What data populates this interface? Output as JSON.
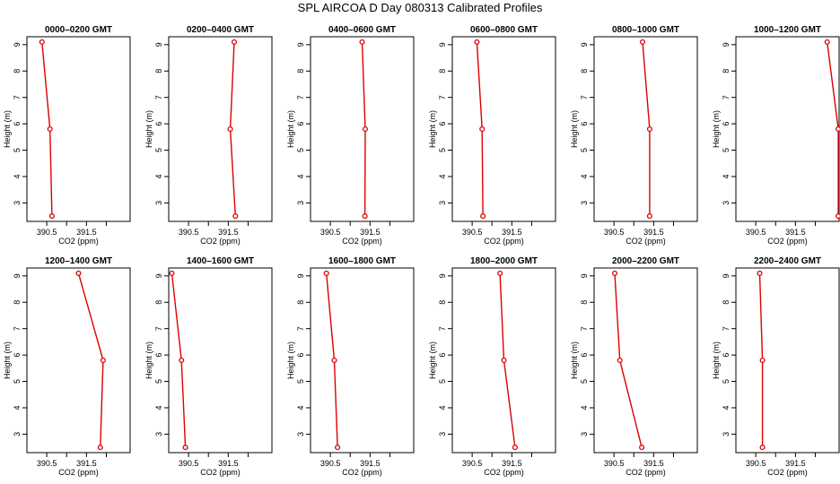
{
  "page": {
    "title": "SPL AIRCOA D  Day 080313  Calibrated Profiles"
  },
  "style": {
    "line_color": "#dd0000",
    "point_color": "#dd0000",
    "axis_color": "#000000"
  },
  "chart_data": [
    {
      "type": "line",
      "title": "0000–0200 GMT",
      "xlabel": "CO2 (ppm)",
      "ylabel": "Height (m)",
      "xlim": [
        390.0,
        392.6
      ],
      "ylim": [
        2.3,
        9.3
      ],
      "xticks": [
        "390.5",
        "391.5"
      ],
      "xtick_values": [
        390.5,
        391.5
      ],
      "yticks": [
        "3",
        "4",
        "5",
        "6",
        "7",
        "8",
        "9"
      ],
      "series": [
        {
          "x": [
            390.38,
            390.58,
            390.63
          ],
          "y": [
            9.1,
            5.8,
            2.5
          ]
        }
      ]
    },
    {
      "type": "line",
      "title": "0200–0400 GMT",
      "xlabel": "CO2 (ppm)",
      "ylabel": "Height (m)",
      "xlim": [
        390.0,
        392.6
      ],
      "ylim": [
        2.3,
        9.3
      ],
      "xticks": [
        "390.5",
        "391.5"
      ],
      "xtick_values": [
        390.5,
        391.5
      ],
      "yticks": [
        "3",
        "4",
        "5",
        "6",
        "7",
        "8",
        "9"
      ],
      "series": [
        {
          "x": [
            391.65,
            391.55,
            391.68
          ],
          "y": [
            9.1,
            5.8,
            2.5
          ]
        }
      ]
    },
    {
      "type": "line",
      "title": "0400–0600 GMT",
      "xlabel": "CO2 (ppm)",
      "ylabel": "Height (m)",
      "xlim": [
        390.0,
        392.6
      ],
      "ylim": [
        2.3,
        9.3
      ],
      "xticks": [
        "390.5",
        "391.5"
      ],
      "xtick_values": [
        390.5,
        391.5
      ],
      "yticks": [
        "3",
        "4",
        "5",
        "6",
        "7",
        "8",
        "9"
      ],
      "series": [
        {
          "x": [
            391.3,
            391.38,
            391.37
          ],
          "y": [
            9.1,
            5.8,
            2.5
          ]
        }
      ]
    },
    {
      "type": "line",
      "title": "0600–0800 GMT",
      "xlabel": "CO2 (ppm)",
      "ylabel": "Height (m)",
      "xlim": [
        390.0,
        392.6
      ],
      "ylim": [
        2.3,
        9.3
      ],
      "xticks": [
        "390.5",
        "391.5"
      ],
      "xtick_values": [
        390.5,
        391.5
      ],
      "yticks": [
        "3",
        "4",
        "5",
        "6",
        "7",
        "8",
        "9"
      ],
      "series": [
        {
          "x": [
            390.62,
            390.75,
            390.77
          ],
          "y": [
            9.1,
            5.8,
            2.5
          ]
        }
      ]
    },
    {
      "type": "line",
      "title": "0800–1000 GMT",
      "xlabel": "CO2 (ppm)",
      "ylabel": "Height (m)",
      "xlim": [
        390.0,
        392.6
      ],
      "ylim": [
        2.3,
        9.3
      ],
      "xticks": [
        "390.5",
        "391.5"
      ],
      "xtick_values": [
        390.5,
        391.5
      ],
      "yticks": [
        "3",
        "4",
        "5",
        "6",
        "7",
        "8",
        "9"
      ],
      "series": [
        {
          "x": [
            391.22,
            391.4,
            391.4
          ],
          "y": [
            9.1,
            5.8,
            2.5
          ]
        }
      ]
    },
    {
      "type": "line",
      "title": "1000–1200 GMT",
      "xlabel": "CO2 (ppm)",
      "ylabel": "Height (m)",
      "xlim": [
        390.0,
        392.6
      ],
      "ylim": [
        2.3,
        9.3
      ],
      "xticks": [
        "390.5",
        "391.5"
      ],
      "xtick_values": [
        390.5,
        391.5
      ],
      "yticks": [
        "3",
        "4",
        "5",
        "6",
        "7",
        "8",
        "9"
      ],
      "series": [
        {
          "x": [
            392.3,
            392.58,
            392.58
          ],
          "y": [
            9.1,
            5.8,
            2.5
          ]
        }
      ]
    },
    {
      "type": "line",
      "title": "1200–1400 GMT",
      "xlabel": "CO2 (ppm)",
      "ylabel": "Height (m)",
      "xlim": [
        390.0,
        392.6
      ],
      "ylim": [
        2.3,
        9.3
      ],
      "xticks": [
        "390.5",
        "391.5"
      ],
      "xtick_values": [
        390.5,
        391.5
      ],
      "yticks": [
        "3",
        "4",
        "5",
        "6",
        "7",
        "8",
        "9"
      ],
      "series": [
        {
          "x": [
            391.3,
            391.92,
            391.85
          ],
          "y": [
            9.1,
            5.8,
            2.5
          ]
        }
      ]
    },
    {
      "type": "line",
      "title": "1400–1600 GMT",
      "xlabel": "CO2 (ppm)",
      "ylabel": "Height (m)",
      "xlim": [
        390.0,
        392.6
      ],
      "ylim": [
        2.3,
        9.3
      ],
      "xticks": [
        "390.5",
        "391.5"
      ],
      "xtick_values": [
        390.5,
        391.5
      ],
      "yticks": [
        "3",
        "4",
        "5",
        "6",
        "7",
        "8",
        "9"
      ],
      "series": [
        {
          "x": [
            390.08,
            390.32,
            390.42
          ],
          "y": [
            9.1,
            5.8,
            2.5
          ]
        }
      ]
    },
    {
      "type": "line",
      "title": "1600–1800 GMT",
      "xlabel": "CO2 (ppm)",
      "ylabel": "Height (m)",
      "xlim": [
        390.0,
        392.6
      ],
      "ylim": [
        2.3,
        9.3
      ],
      "xticks": [
        "390.5",
        "391.5"
      ],
      "xtick_values": [
        390.5,
        391.5
      ],
      "yticks": [
        "3",
        "4",
        "5",
        "6",
        "7",
        "8",
        "9"
      ],
      "series": [
        {
          "x": [
            390.4,
            390.6,
            390.68
          ],
          "y": [
            9.1,
            5.8,
            2.5
          ]
        }
      ]
    },
    {
      "type": "line",
      "title": "1800–2000 GMT",
      "xlabel": "CO2 (ppm)",
      "ylabel": "Height (m)",
      "xlim": [
        390.0,
        392.6
      ],
      "ylim": [
        2.3,
        9.3
      ],
      "xticks": [
        "390.5",
        "391.5"
      ],
      "xtick_values": [
        390.5,
        391.5
      ],
      "yticks": [
        "3",
        "4",
        "5",
        "6",
        "7",
        "8",
        "9"
      ],
      "series": [
        {
          "x": [
            391.2,
            391.3,
            391.58
          ],
          "y": [
            9.1,
            5.8,
            2.5
          ]
        }
      ]
    },
    {
      "type": "line",
      "title": "2000–2200 GMT",
      "xlabel": "CO2 (ppm)",
      "ylabel": "Height (m)",
      "xlim": [
        390.0,
        392.6
      ],
      "ylim": [
        2.3,
        9.3
      ],
      "xticks": [
        "390.5",
        "391.5"
      ],
      "xtick_values": [
        390.5,
        391.5
      ],
      "yticks": [
        "3",
        "4",
        "5",
        "6",
        "7",
        "8",
        "9"
      ],
      "series": [
        {
          "x": [
            390.52,
            390.65,
            391.2
          ],
          "y": [
            9.1,
            5.8,
            2.5
          ]
        }
      ]
    },
    {
      "type": "line",
      "title": "2200–2400 GMT",
      "xlabel": "CO2 (ppm)",
      "ylabel": "Height (m)",
      "xlim": [
        390.0,
        392.6
      ],
      "ylim": [
        2.3,
        9.3
      ],
      "xticks": [
        "390.5",
        "391.5"
      ],
      "xtick_values": [
        390.5,
        391.5
      ],
      "yticks": [
        "3",
        "4",
        "5",
        "6",
        "7",
        "8",
        "9"
      ],
      "series": [
        {
          "x": [
            390.6,
            390.67,
            390.67
          ],
          "y": [
            9.1,
            5.8,
            2.5
          ]
        }
      ]
    }
  ]
}
